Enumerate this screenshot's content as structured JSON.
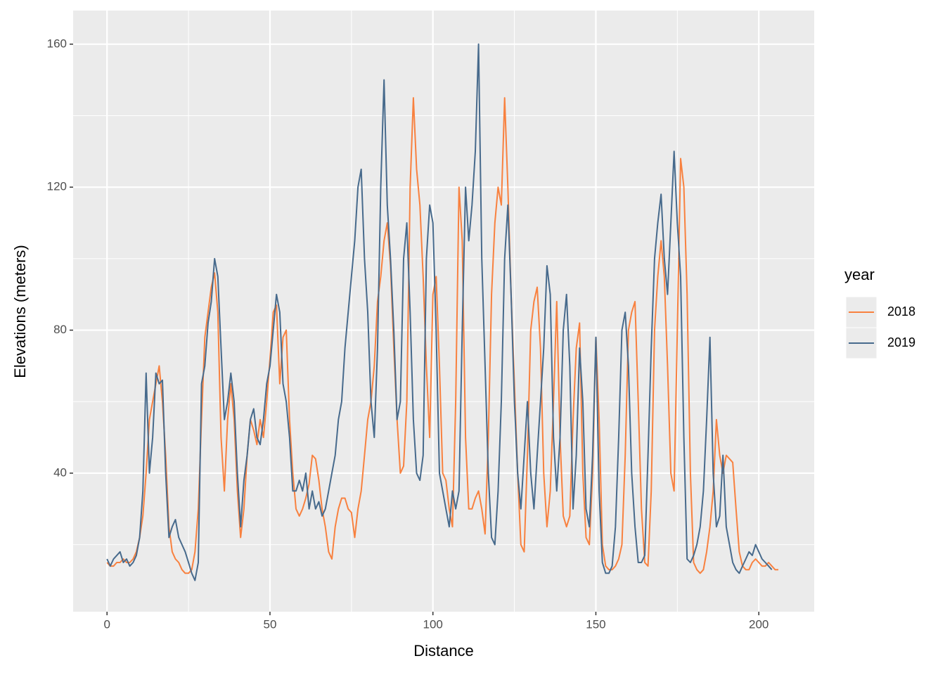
{
  "chart_data": {
    "type": "line",
    "x_label": "Distance",
    "y_label": "Elevations (meters)",
    "legend_title": "year",
    "x": [
      0,
      1,
      2,
      3,
      4,
      5,
      6,
      7,
      8,
      9,
      10,
      11,
      12,
      13,
      14,
      15,
      16,
      17,
      18,
      19,
      20,
      21,
      22,
      23,
      24,
      25,
      26,
      27,
      28,
      29,
      30,
      31,
      32,
      33,
      34,
      35,
      36,
      37,
      38,
      39,
      40,
      41,
      42,
      43,
      44,
      45,
      46,
      47,
      48,
      49,
      50,
      51,
      52,
      53,
      54,
      55,
      56,
      57,
      58,
      59,
      60,
      61,
      62,
      63,
      64,
      65,
      66,
      67,
      68,
      69,
      70,
      71,
      72,
      73,
      74,
      75,
      76,
      77,
      78,
      79,
      80,
      81,
      82,
      83,
      84,
      85,
      86,
      87,
      88,
      89,
      90,
      91,
      92,
      93,
      94,
      95,
      96,
      97,
      98,
      99,
      100,
      101,
      102,
      103,
      104,
      105,
      106,
      107,
      108,
      109,
      110,
      111,
      112,
      113,
      114,
      115,
      116,
      117,
      118,
      119,
      120,
      121,
      122,
      123,
      124,
      125,
      126,
      127,
      128,
      129,
      130,
      131,
      132,
      133,
      134,
      135,
      136,
      137,
      138,
      139,
      140,
      141,
      142,
      143,
      144,
      145,
      146,
      147,
      148,
      149,
      150,
      151,
      152,
      153,
      154,
      155,
      156,
      157,
      158,
      159,
      160,
      161,
      162,
      163,
      164,
      165,
      166,
      167,
      168,
      169,
      170,
      171,
      172,
      173,
      174,
      175,
      176,
      177,
      178,
      179,
      180,
      181,
      182,
      183,
      184,
      185,
      186,
      187,
      188,
      189,
      190,
      191,
      192,
      193,
      194,
      195,
      196,
      197,
      198,
      199,
      200,
      201,
      202,
      203,
      204,
      205,
      206
    ],
    "series": [
      {
        "name": "2018",
        "color": "#f8813f",
        "values": [
          15,
          14,
          14,
          15,
          15,
          16,
          15,
          15,
          16,
          18,
          22,
          28,
          40,
          55,
          60,
          65,
          70,
          60,
          45,
          25,
          18,
          16,
          15,
          13,
          12,
          12,
          13,
          18,
          30,
          55,
          78,
          85,
          92,
          96,
          85,
          50,
          35,
          55,
          65,
          55,
          35,
          22,
          30,
          45,
          55,
          52,
          48,
          55,
          50,
          60,
          72,
          85,
          87,
          65,
          78,
          80,
          55,
          40,
          30,
          28,
          30,
          33,
          37,
          45,
          44,
          38,
          30,
          25,
          18,
          16,
          25,
          30,
          33,
          33,
          30,
          29,
          22,
          30,
          35,
          45,
          55,
          60,
          70,
          88,
          95,
          105,
          110,
          98,
          75,
          55,
          40,
          42,
          60,
          120,
          145,
          125,
          115,
          95,
          70,
          50,
          90,
          95,
          70,
          40,
          38,
          30,
          25,
          60,
          120,
          105,
          50,
          30,
          30,
          33,
          35,
          30,
          23,
          50,
          90,
          110,
          120,
          115,
          145,
          120,
          90,
          65,
          40,
          20,
          18,
          45,
          80,
          88,
          92,
          75,
          40,
          25,
          35,
          60,
          88,
          50,
          28,
          25,
          28,
          55,
          75,
          82,
          40,
          22,
          20,
          40,
          78,
          55,
          20,
          14,
          13,
          13,
          14,
          16,
          20,
          45,
          80,
          85,
          88,
          60,
          30,
          15,
          14,
          35,
          80,
          95,
          105,
          95,
          70,
          40,
          35,
          80,
          128,
          120,
          90,
          40,
          15,
          13,
          12,
          13,
          18,
          25,
          35,
          55,
          45,
          40,
          45,
          44,
          43,
          30,
          18,
          14,
          13,
          13,
          15,
          16,
          15,
          14,
          14,
          15,
          14,
          13,
          13
        ]
      },
      {
        "name": "2019",
        "color": "#476a8c",
        "values": [
          16,
          14,
          16,
          17,
          18,
          15,
          16,
          14,
          15,
          17,
          22,
          35,
          68,
          40,
          50,
          68,
          65,
          66,
          40,
          22,
          25,
          27,
          22,
          20,
          18,
          15,
          12,
          10,
          15,
          65,
          70,
          82,
          88,
          100,
          95,
          75,
          55,
          60,
          68,
          60,
          40,
          25,
          38,
          45,
          55,
          58,
          50,
          48,
          55,
          65,
          70,
          80,
          90,
          85,
          65,
          60,
          50,
          35,
          35,
          38,
          35,
          40,
          30,
          35,
          30,
          32,
          28,
          30,
          35,
          40,
          45,
          55,
          60,
          75,
          85,
          95,
          105,
          120,
          125,
          100,
          85,
          60,
          50,
          75,
          120,
          150,
          115,
          100,
          80,
          55,
          60,
          100,
          110,
          85,
          55,
          40,
          38,
          45,
          100,
          115,
          110,
          80,
          40,
          35,
          30,
          25,
          35,
          30,
          35,
          80,
          120,
          105,
          115,
          130,
          160,
          100,
          70,
          40,
          22,
          20,
          35,
          60,
          100,
          115,
          90,
          60,
          40,
          30,
          45,
          60,
          40,
          30,
          45,
          60,
          75,
          98,
          90,
          50,
          35,
          50,
          80,
          90,
          70,
          30,
          45,
          75,
          60,
          30,
          25,
          45,
          78,
          35,
          15,
          12,
          12,
          14,
          25,
          50,
          80,
          85,
          70,
          40,
          25,
          15,
          15,
          17,
          45,
          75,
          100,
          110,
          118,
          100,
          90,
          110,
          130,
          110,
          95,
          50,
          16,
          15,
          17,
          20,
          25,
          35,
          55,
          78,
          40,
          25,
          28,
          45,
          25,
          20,
          15,
          13,
          12,
          14,
          16,
          18,
          17,
          20,
          18,
          16,
          15,
          14,
          13,
          null,
          null
        ]
      }
    ],
    "xlim": [
      -10.4,
      217
    ],
    "xticks": [
      0,
      50,
      100,
      150,
      200
    ],
    "ylim": [
      1.24,
      169.4
    ],
    "yticks": [
      40,
      80,
      120,
      160
    ],
    "grid": true,
    "legend": "right"
  }
}
